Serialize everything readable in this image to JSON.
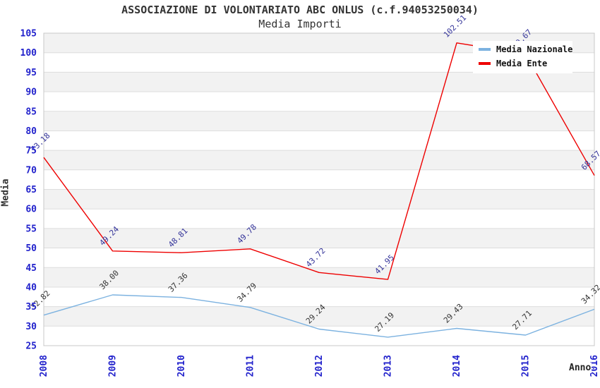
{
  "title": "ASSOCIAZIONE DI VOLONTARIATO ABC ONLUS (c.f.94053250034)",
  "subtitle": "Media Importi",
  "axes": {
    "y_label": "Media",
    "x_label": "Anno",
    "y_ticks": [
      25,
      30,
      35,
      40,
      45,
      50,
      55,
      60,
      65,
      70,
      75,
      80,
      85,
      90,
      95,
      100,
      105
    ],
    "x_ticks": [
      "2008",
      "2009",
      "2010",
      "2011",
      "2012",
      "2013",
      "2014",
      "2015",
      "2016"
    ],
    "tick_color": "#2222CC"
  },
  "legend": {
    "position": "top-right",
    "items": [
      {
        "label": "Media Nazionale",
        "color": "#7CB2E0"
      },
      {
        "label": "Media Ente",
        "color": "#EE0000"
      }
    ]
  },
  "chart_data": {
    "type": "line",
    "x": [
      "2008",
      "2009",
      "2010",
      "2011",
      "2012",
      "2013",
      "2014",
      "2015",
      "2016"
    ],
    "series": [
      {
        "name": "Media Nazionale",
        "color": "#7CB2E0",
        "label_color": "#333333",
        "values": [
          32.82,
          38.0,
          37.36,
          34.79,
          29.24,
          27.19,
          29.43,
          27.71,
          34.32
        ],
        "labels": [
          "32.82",
          "38.00",
          "37.36",
          "34.79",
          "29.24",
          "27.19",
          "29.43",
          "27.71",
          "34.32"
        ]
      },
      {
        "name": "Media Ente",
        "color": "#EE0000",
        "label_color": "#333399",
        "values": [
          73.18,
          49.24,
          48.81,
          49.78,
          43.72,
          41.95,
          102.51,
          99.67,
          68.57
        ],
        "labels": [
          "73.18",
          "49.24",
          "48.81",
          "49.78",
          "43.72",
          "41.95",
          "102.51",
          "99.67",
          "68.57"
        ],
        "note": "2015 value/label mostly occluded by legend box; 99.67 estimated from line slope, only label tail visible"
      }
    ],
    "ylim": [
      25,
      105
    ],
    "ytick_step": 5,
    "band_rows": "alternating gray bands on [30,35],[40,45],[50,55],[60,65],[70,75],[80,85],[90,95],[100,105]",
    "grid": "horizontal gridlines every 5 units",
    "legend_position": "top-right",
    "title": "ASSOCIAZIONE DI VOLONTARIATO ABC ONLUS (c.f.94053250034)",
    "subtitle": "Media Importi",
    "xlabel": "Anno",
    "ylabel": "Media"
  },
  "colors": {
    "band": "#F2F2F2",
    "gridline": "#DDDDDD",
    "plot_border": "#C8C8C8",
    "background": "#FFFFFF",
    "tick_label": "#2222CC",
    "title_text": "#333333"
  }
}
